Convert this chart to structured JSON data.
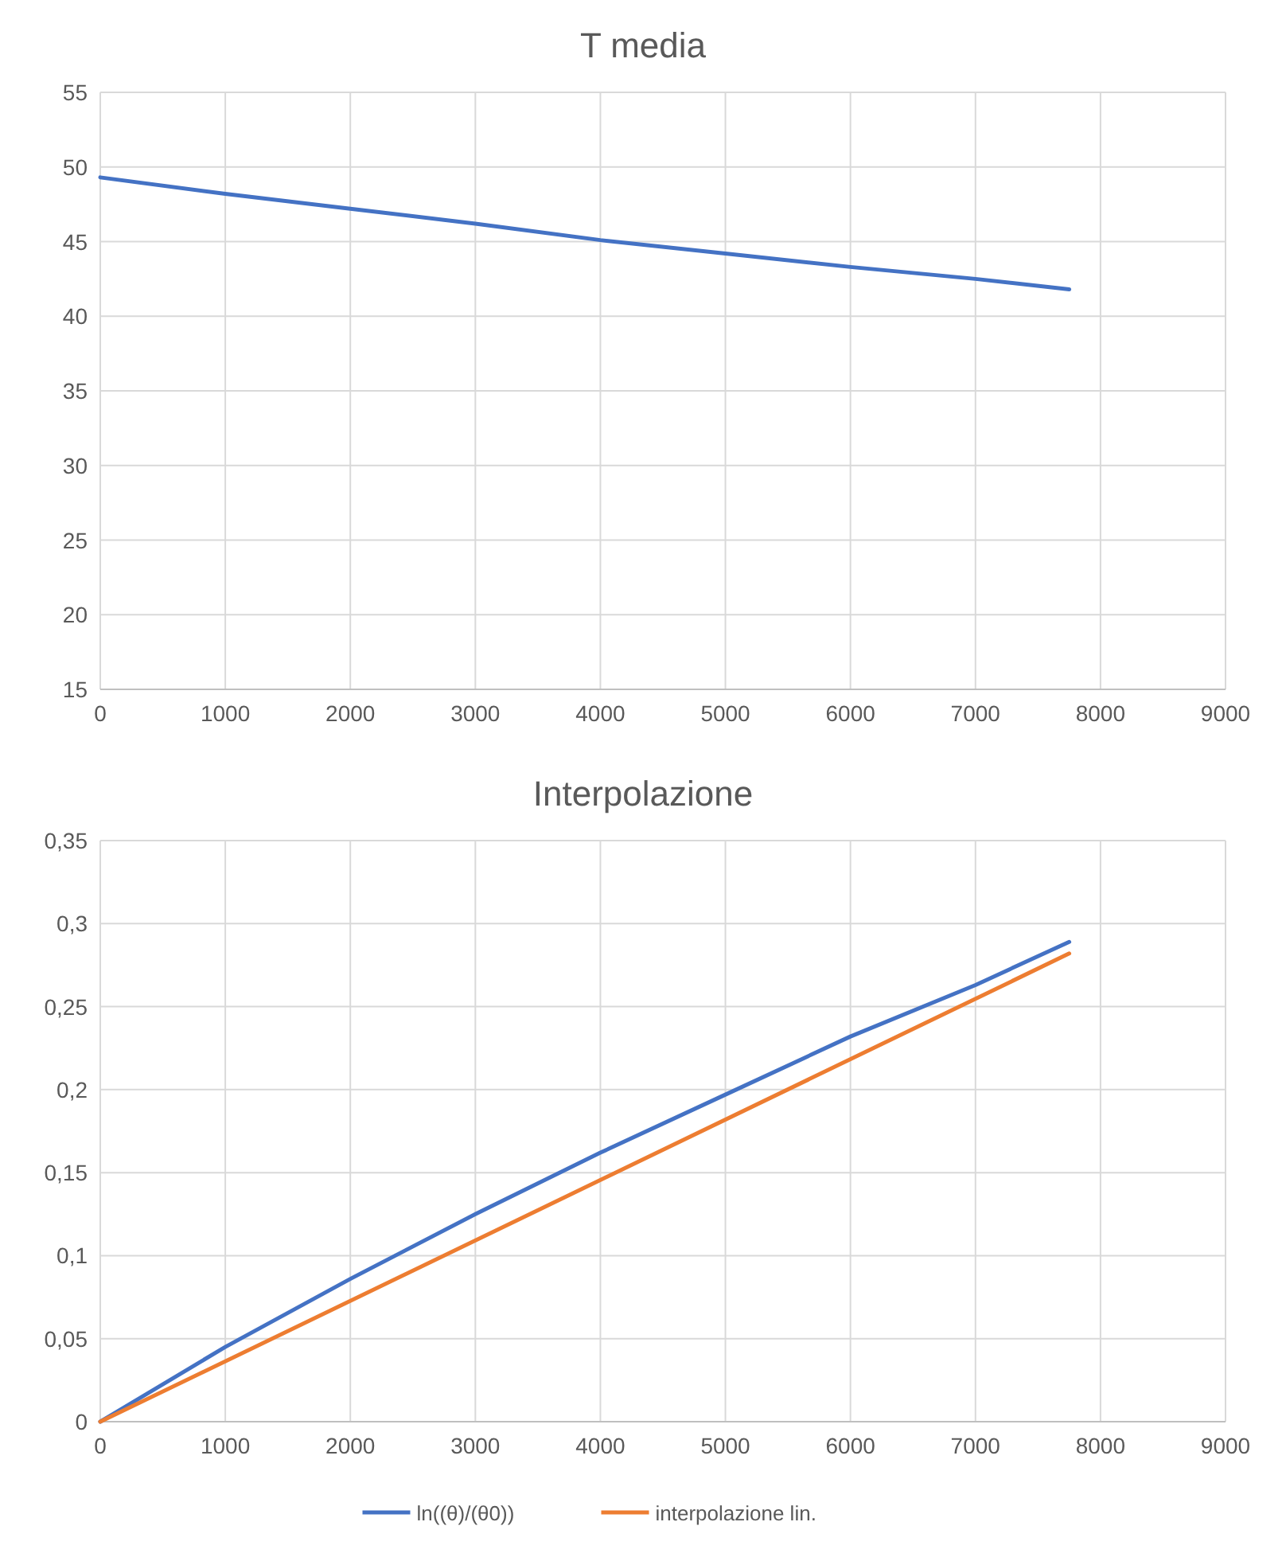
{
  "chart_data": [
    {
      "type": "line",
      "title": "T media",
      "xlim": [
        0,
        9000
      ],
      "xticks": [
        0,
        1000,
        2000,
        3000,
        4000,
        5000,
        6000,
        7000,
        8000,
        9000
      ],
      "ylim": [
        15,
        55
      ],
      "yticks": [
        15,
        20,
        25,
        30,
        35,
        40,
        45,
        50,
        55
      ],
      "grid": true,
      "legend": false,
      "marker": "none",
      "line_style": "solid",
      "series": [
        {
          "color": "#4472c4",
          "x": [
            0,
            1000,
            2000,
            3000,
            4000,
            5000,
            6000,
            7000,
            7750
          ],
          "values": [
            49.3,
            48.2,
            47.2,
            46.2,
            45.1,
            44.2,
            43.3,
            42.5,
            41.8
          ]
        }
      ]
    },
    {
      "type": "line",
      "title": "Interpolazione",
      "xlim": [
        0,
        9000
      ],
      "xticks": [
        0,
        1000,
        2000,
        3000,
        4000,
        5000,
        6000,
        7000,
        8000,
        9000
      ],
      "ylim": [
        0,
        0.35
      ],
      "yticks": [
        0,
        {
          "value": 0.05,
          "label": "0,05"
        },
        {
          "value": 0.1,
          "label": "0,1"
        },
        {
          "value": 0.15,
          "label": "0,15"
        },
        {
          "value": 0.2,
          "label": "0,2"
        },
        {
          "value": 0.25,
          "label": "0,25"
        },
        {
          "value": 0.3,
          "label": "0,3"
        },
        {
          "value": 0.35,
          "label": "0,35"
        }
      ],
      "grid": true,
      "legend": "bottom",
      "marker": "none",
      "line_style": "solid",
      "series": [
        {
          "name": "ln((θ)/(θ0))",
          "color": "#4472c4",
          "x": [
            0,
            1000,
            2000,
            3000,
            4000,
            5000,
            6000,
            7000,
            7750
          ],
          "values": [
            0,
            0.045,
            0.086,
            0.125,
            0.162,
            0.197,
            0.232,
            0.263,
            0.289
          ]
        },
        {
          "name": "interpolazione lin.",
          "color": "#ed7d31",
          "x": [
            0,
            7750
          ],
          "values": [
            0,
            0.282
          ]
        }
      ]
    }
  ]
}
